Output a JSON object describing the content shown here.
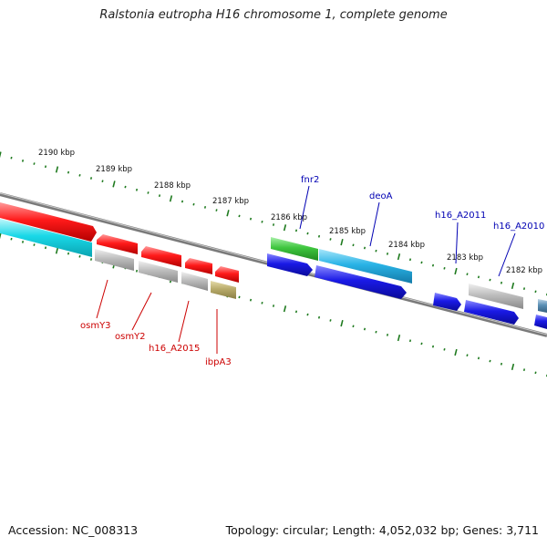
{
  "title": "Ralstonia eutropha H16 chromosome 1, complete genome",
  "footer": {
    "accession": "Accession: NC_008313",
    "topology": "Topology: circular; Length: 4,052,032 bp; Genes: 3,711"
  },
  "colors": {
    "backbone": "#7a7a7a",
    "tick": "#1e7a1e",
    "red": "#ff1a1a",
    "cyan": "#19d8e8",
    "gray": "#b4b4b4",
    "olive": "#b8ab6a",
    "green": "#3fc63f",
    "sky": "#29b3e6",
    "blue": "#1a1ae6",
    "steel": "#5b8fb5",
    "label_red": "#cc0000",
    "label_blue": "#0000b3"
  },
  "scale_labels": [
    "2190 kbp",
    "2189 kbp",
    "2188 kbp",
    "2187 kbp",
    "2186 kbp",
    "2185 kbp",
    "2184 kbp",
    "2183 kbp",
    "2182 kbp"
  ],
  "gene_labels": {
    "left": [
      "osmY3",
      "osmY2",
      "h16_A2015",
      "ibpA3"
    ],
    "right": [
      "fnr2",
      "deoA",
      "h16_A2011",
      "h16_A2010"
    ]
  }
}
